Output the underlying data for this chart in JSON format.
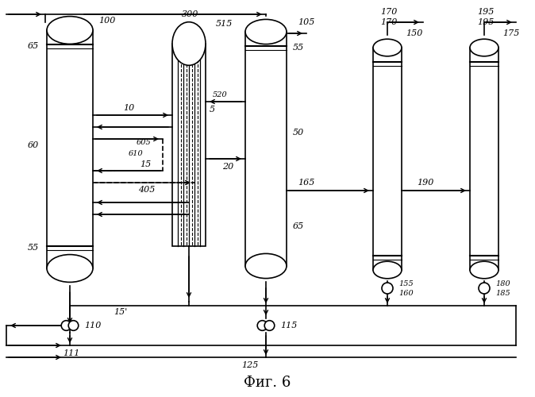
{
  "title": "Фиг. 6",
  "bg_color": "#ffffff",
  "line_color": "#000000",
  "fig_width": 6.74,
  "fig_height": 5.0,
  "dpi": 100
}
